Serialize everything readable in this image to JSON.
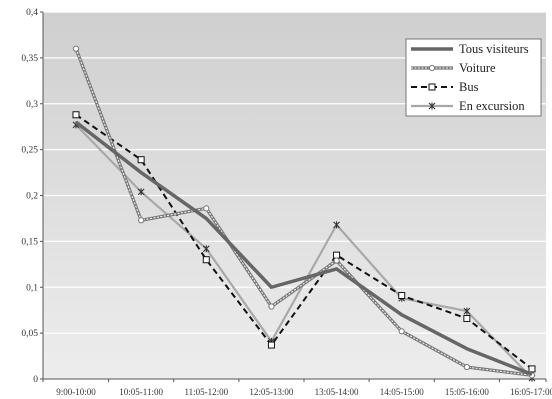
{
  "chart_data": {
    "type": "line",
    "categories": [
      "9:00-10:00",
      "10:05-11:00",
      "11:05-12:00",
      "12:05-13:00",
      "13:05-14:00",
      "14:05-15:00",
      "15:05-16:00",
      "16:05-17:00"
    ],
    "ylim": [
      0,
      0.4
    ],
    "yticks": [
      "0",
      "0,05",
      "0,1",
      "0,15",
      "0,2",
      "0,25",
      "0,3",
      "0,35",
      "0,4"
    ],
    "grid": true,
    "legend_position": "top-right",
    "series": [
      {
        "name": "Tous visiteurs",
        "values": [
          0.28,
          0.225,
          0.175,
          0.1,
          0.12,
          0.07,
          0.033,
          0.005
        ],
        "color": "#666666",
        "style": "thick",
        "marker": "none"
      },
      {
        "name": "Voiture",
        "values": [
          0.36,
          0.173,
          0.186,
          0.079,
          0.129,
          0.052,
          0.013,
          0.004
        ],
        "color": "#777777",
        "style": "double",
        "marker": "circle"
      },
      {
        "name": "Bus",
        "values": [
          0.288,
          0.239,
          0.13,
          0.037,
          0.135,
          0.091,
          0.066,
          0.011
        ],
        "color": "#111111",
        "style": "dashed",
        "marker": "square"
      },
      {
        "name": "En excursion",
        "values": [
          0.277,
          0.204,
          0.142,
          0.041,
          0.168,
          0.088,
          0.074,
          0.001
        ],
        "color": "#a8a8a8",
        "style": "solid",
        "marker": "star"
      }
    ]
  }
}
